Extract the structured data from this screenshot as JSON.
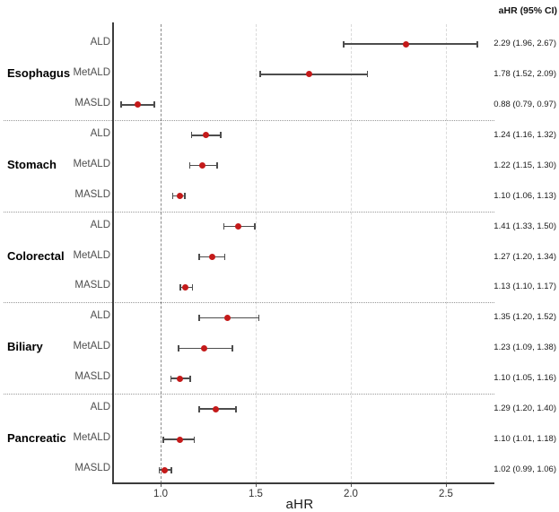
{
  "header": {
    "ahr_col_label": "aHR (95% CI)"
  },
  "chart_data": {
    "type": "forest",
    "title": "",
    "xlabel": "aHR",
    "x_ticks": [
      1.0,
      1.5,
      2.0,
      2.5
    ],
    "x_tick_labels": [
      "1.0",
      "1.5",
      "2.0",
      "2.5"
    ],
    "xlim": [
      0.75,
      2.755
    ],
    "ref_line": 1.0,
    "legend_position": "none",
    "grid": "vertical-dashed",
    "groups": [
      {
        "name": "Esophagus",
        "rows": [
          {
            "label": "ALD",
            "est": 2.29,
            "lo": 1.96,
            "hi": 2.67,
            "text": "2.29 (1.96, 2.67)"
          },
          {
            "label": "MetALD",
            "est": 1.78,
            "lo": 1.52,
            "hi": 2.09,
            "text": "1.78 (1.52, 2.09)"
          },
          {
            "label": "MASLD",
            "est": 0.88,
            "lo": 0.79,
            "hi": 0.97,
            "text": "0.88 (0.79, 0.97)"
          }
        ]
      },
      {
        "name": "Stomach",
        "rows": [
          {
            "label": "ALD",
            "est": 1.24,
            "lo": 1.16,
            "hi": 1.32,
            "text": "1.24 (1.16, 1.32)"
          },
          {
            "label": "MetALD",
            "est": 1.22,
            "lo": 1.15,
            "hi": 1.3,
            "text": "1.22 (1.15, 1.30)"
          },
          {
            "label": "MASLD",
            "est": 1.1,
            "lo": 1.06,
            "hi": 1.13,
            "text": "1.10 (1.06, 1.13)"
          }
        ]
      },
      {
        "name": "Colorectal",
        "rows": [
          {
            "label": "ALD",
            "est": 1.41,
            "lo": 1.33,
            "hi": 1.5,
            "text": "1.41 (1.33, 1.50)"
          },
          {
            "label": "MetALD",
            "est": 1.27,
            "lo": 1.2,
            "hi": 1.34,
            "text": "1.27 (1.20, 1.34)"
          },
          {
            "label": "MASLD",
            "est": 1.13,
            "lo": 1.1,
            "hi": 1.17,
            "text": "1.13 (1.10, 1.17)"
          }
        ]
      },
      {
        "name": "Biliary",
        "rows": [
          {
            "label": "ALD",
            "est": 1.35,
            "lo": 1.2,
            "hi": 1.52,
            "text": "1.35 (1.20, 1.52)"
          },
          {
            "label": "MetALD",
            "est": 1.23,
            "lo": 1.09,
            "hi": 1.38,
            "text": "1.23 (1.09, 1.38)"
          },
          {
            "label": "MASLD",
            "est": 1.1,
            "lo": 1.05,
            "hi": 1.16,
            "text": "1.10 (1.05, 1.16)"
          }
        ]
      },
      {
        "name": "Pancreatic",
        "rows": [
          {
            "label": "ALD",
            "est": 1.29,
            "lo": 1.2,
            "hi": 1.4,
            "text": "1.29 (1.20, 1.40)"
          },
          {
            "label": "MetALD",
            "est": 1.1,
            "lo": 1.01,
            "hi": 1.18,
            "text": "1.10 (1.01, 1.18)"
          },
          {
            "label": "MASLD",
            "est": 1.02,
            "lo": 0.99,
            "hi": 1.06,
            "text": "1.02 (0.99, 1.06)"
          }
        ]
      }
    ],
    "colors": {
      "point": "#c41a1a",
      "ci_line": "#4d4d4d",
      "ref_line": "#8a8a8a",
      "grid_line": "#dadada",
      "divider": "#999999",
      "axis": "#3c3c3c"
    }
  }
}
